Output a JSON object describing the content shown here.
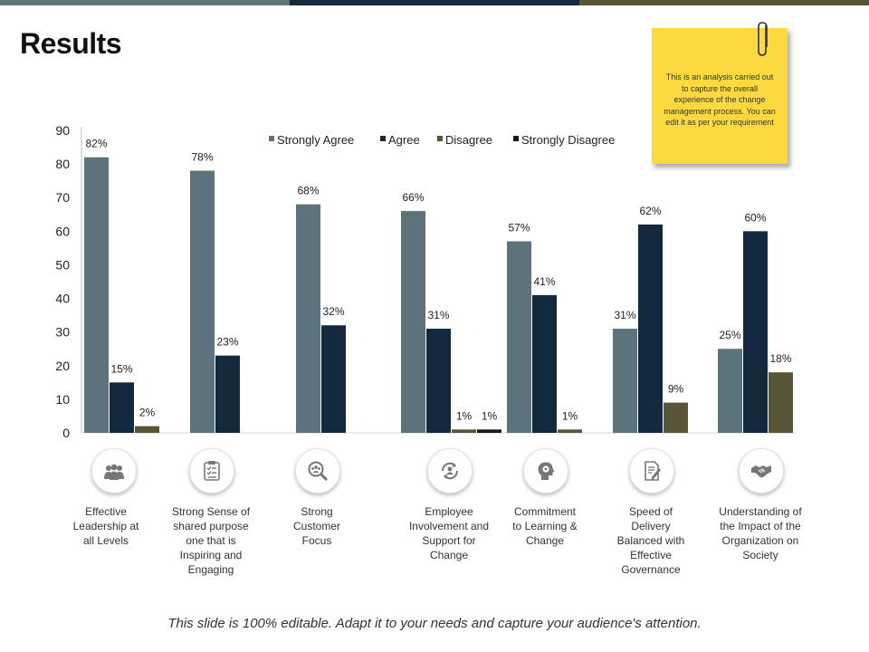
{
  "slide": {
    "title": "Results",
    "note": "This is an analysis carried out to capture the overall experience of the change management process. You can edit it as per your requirement",
    "footer": "This slide is 100% editable. Adapt it to your needs and capture your audience's attention."
  },
  "colors": {
    "topbar": [
      "#5d737b",
      "#13293d",
      "#585539"
    ],
    "note_bg": "#fdd940",
    "strongly_agree": "#5d737b",
    "agree": "#13293d",
    "disagree": "#585539",
    "strongly_disagree": "#1a1a1a",
    "icon_gray": "#777777"
  },
  "icons": [
    "team-icon",
    "checklist-icon",
    "magnify-people-icon",
    "people-cycle-icon",
    "head-gear-icon",
    "document-pen-icon",
    "handshake-icon"
  ],
  "chart_data": {
    "type": "bar",
    "ylim": [
      0,
      90
    ],
    "yticks": [
      0,
      10,
      20,
      30,
      40,
      50,
      60,
      70,
      80,
      90
    ],
    "grid": false,
    "legend": "top",
    "categories": [
      "Effective Leadership at all Levels",
      "Strong Sense of shared purpose one that is Inspiring and Engaging",
      "Strong Customer Focus",
      "Employee Involvement  and Support for Change",
      "Commitment to Learning & Change",
      "Speed of Delivery Balanced with Effective Governance",
      "Understanding of the Impact of the Organization on Society"
    ],
    "category_lines": [
      [
        "Effective",
        "Leadership at",
        "all Levels"
      ],
      [
        "Strong Sense of",
        "shared purpose",
        "one that is",
        "Inspiring and",
        "Engaging"
      ],
      [
        "Strong",
        "Customer",
        "Focus"
      ],
      [
        "Employee",
        "Involvement  and",
        "Support for",
        "Change"
      ],
      [
        "Commitment",
        "to Learning &",
        "Change"
      ],
      [
        "Speed of",
        "Delivery",
        "Balanced with",
        "Effective",
        "Governance"
      ],
      [
        "Understanding of",
        "the Impact of the",
        "Organization on",
        "Society"
      ]
    ],
    "series": [
      {
        "name": "Strongly Agree",
        "values": [
          82,
          78,
          68,
          66,
          57,
          31,
          25
        ],
        "labels": [
          "82%",
          "78%",
          "68%",
          "66%",
          "57%",
          "31%",
          "25%"
        ]
      },
      {
        "name": "Agree",
        "values": [
          15,
          23,
          32,
          31,
          41,
          62,
          60
        ],
        "labels": [
          "15%",
          "23%",
          "32%",
          "31%",
          "41%",
          "62%",
          "60%"
        ]
      },
      {
        "name": "Disagree",
        "values": [
          2,
          null,
          null,
          1,
          1,
          9,
          18
        ],
        "labels": [
          "2%",
          null,
          null,
          "1%",
          "1%",
          "9%",
          "18%"
        ]
      },
      {
        "name": "Strongly Disagree",
        "values": [
          null,
          null,
          null,
          1,
          null,
          null,
          null
        ],
        "labels": [
          null,
          null,
          null,
          "1%",
          null,
          null,
          null
        ]
      }
    ]
  }
}
